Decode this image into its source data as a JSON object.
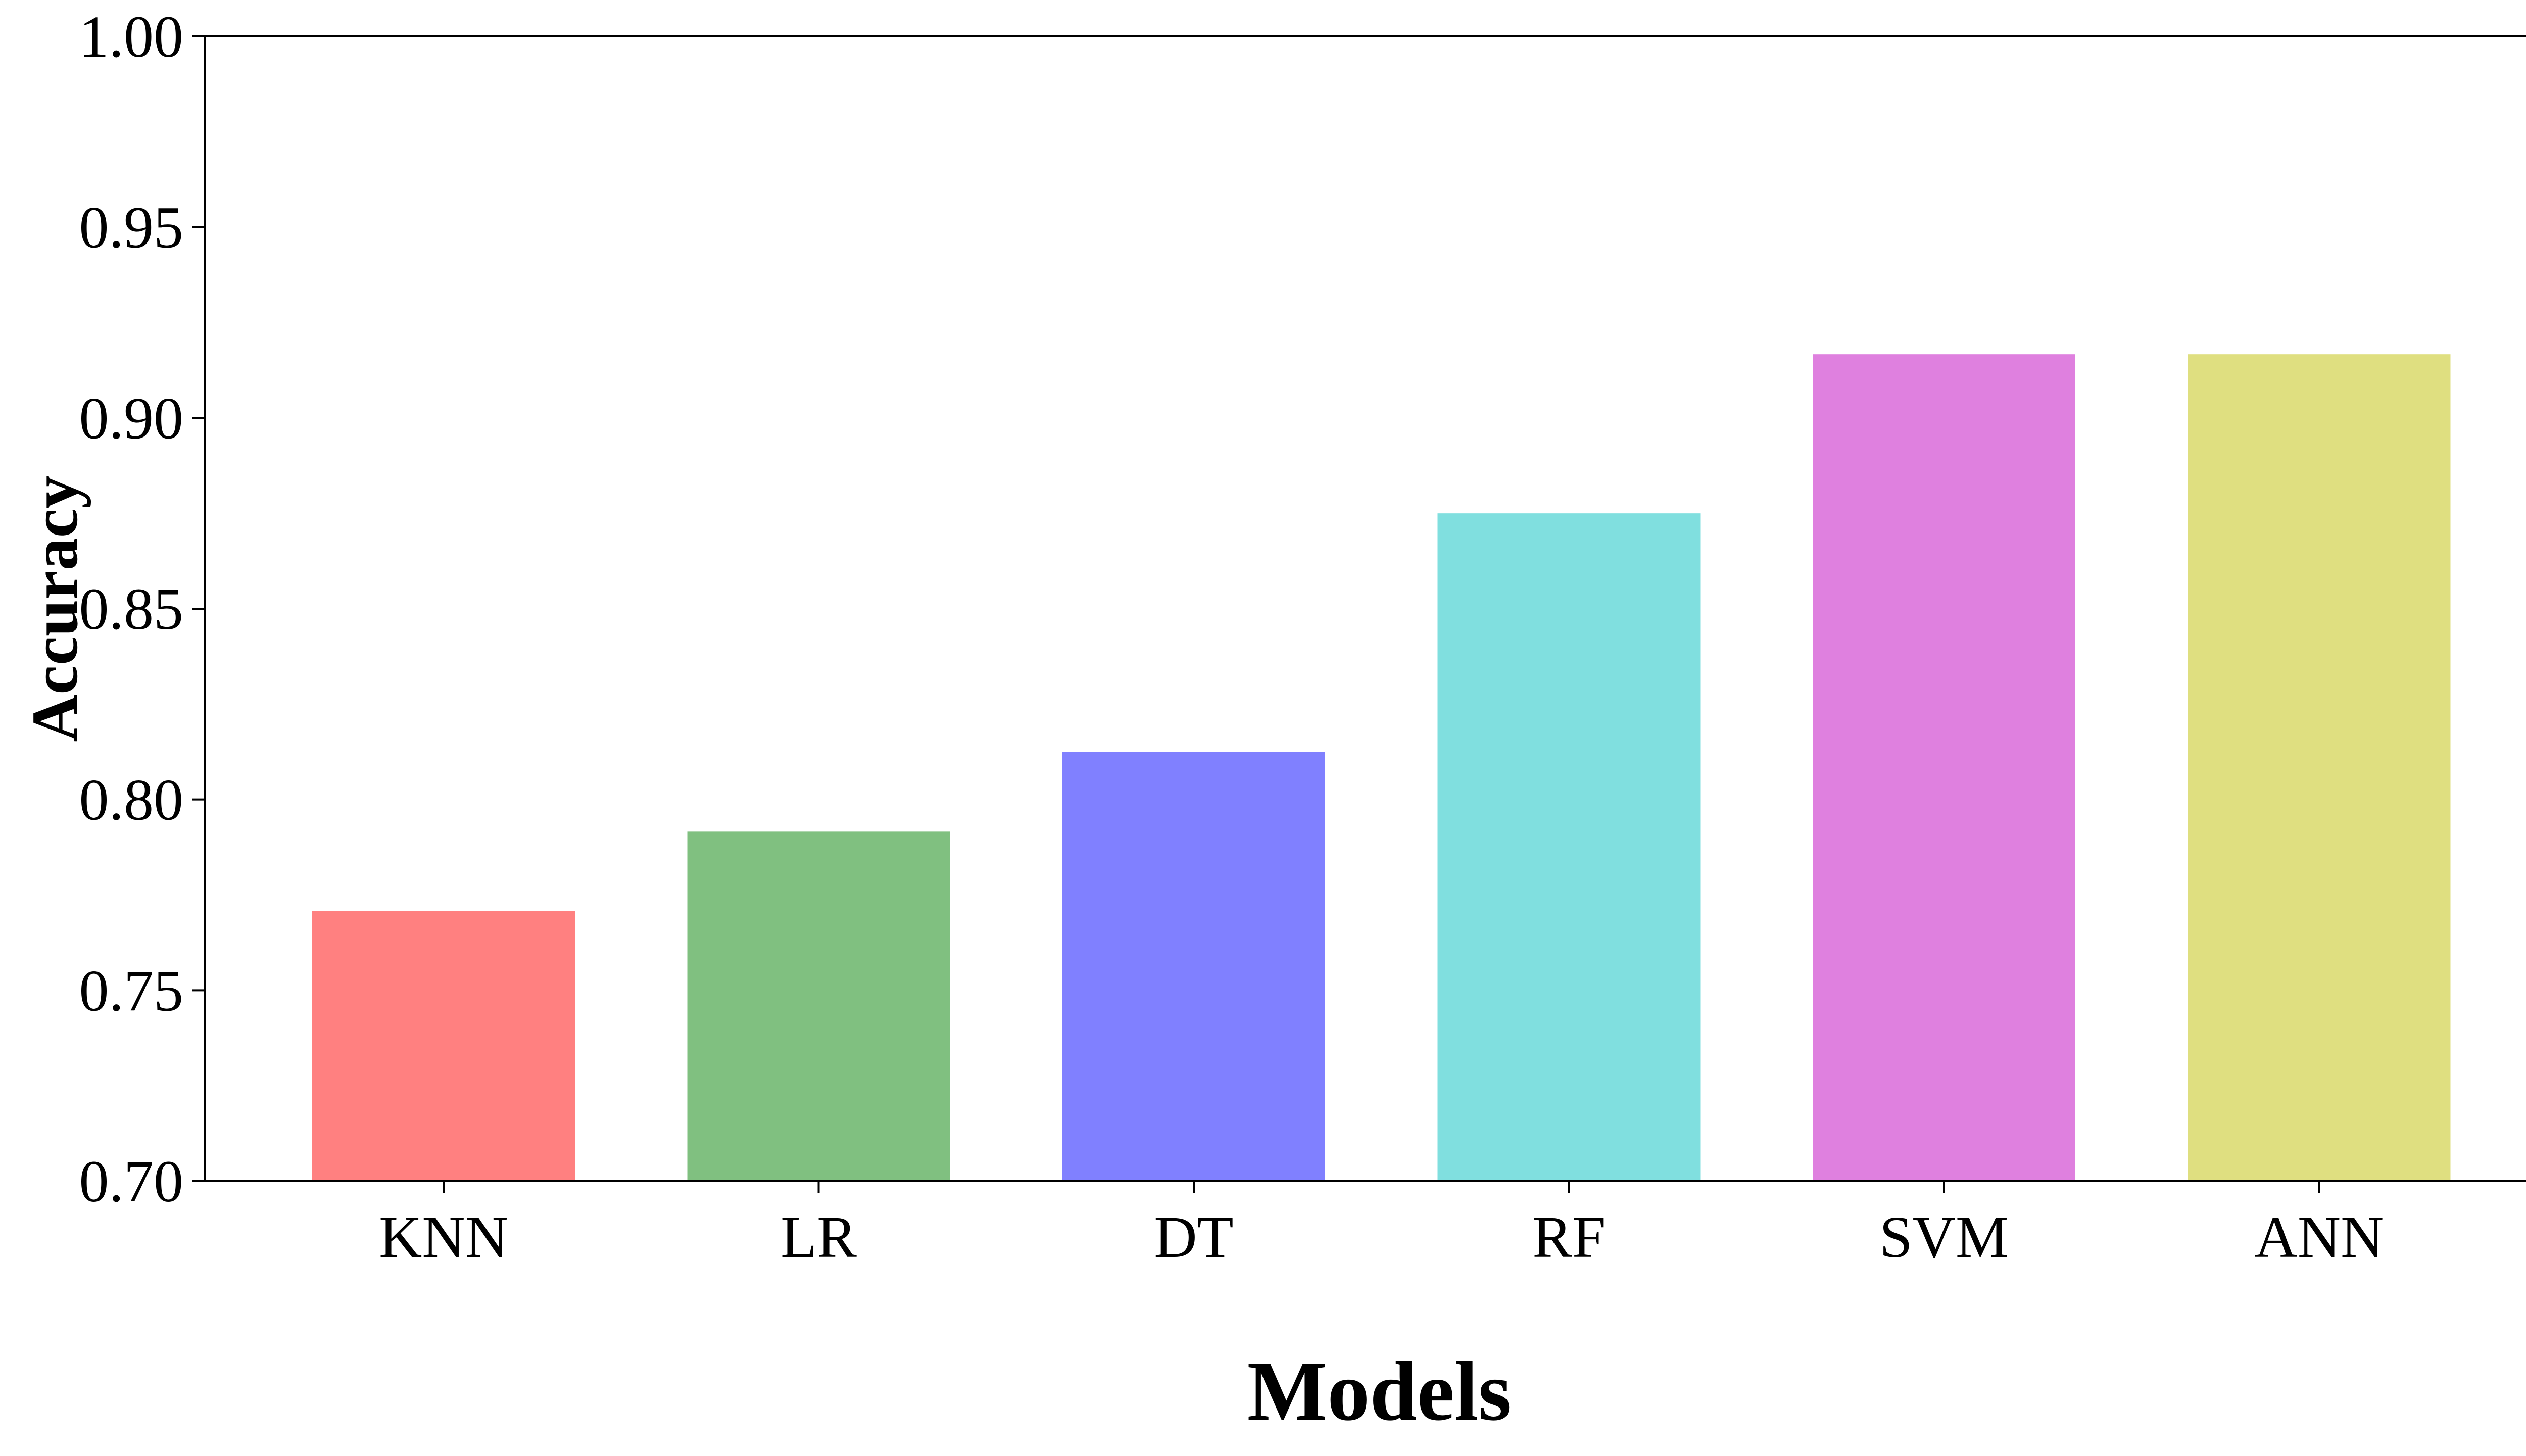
{
  "chart_data": {
    "type": "bar",
    "title": "",
    "xlabel": "Models",
    "ylabel": "Accuracy",
    "categories": [
      "KNN",
      "LR",
      "DT",
      "RF",
      "SVM",
      "ANN"
    ],
    "values": [
      0.7708,
      0.7917,
      0.8125,
      0.875,
      0.9167,
      0.9167
    ],
    "colors": [
      "#ff8080",
      "#80c080",
      "#8080ff",
      "#80dfdf",
      "#df80df",
      "#dfdf80"
    ],
    "ylim": [
      0.7,
      1.0
    ],
    "yticks": [
      "0.70",
      "0.75",
      "0.80",
      "0.85",
      "0.90",
      "0.95",
      "1.00"
    ],
    "grid": false,
    "legend": "none"
  }
}
